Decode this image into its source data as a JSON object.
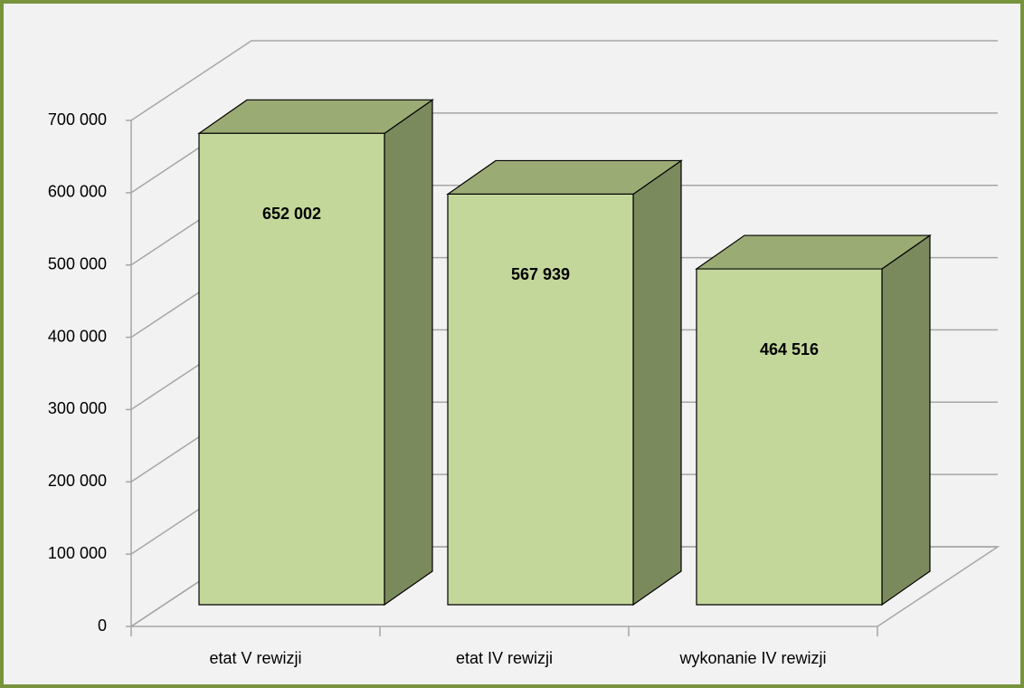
{
  "chart_data": {
    "type": "bar3d",
    "categories": [
      "etat V rewizji",
      "etat IV rewizji",
      "wykonanie IV rewizji"
    ],
    "values": [
      652002,
      567939,
      464516
    ],
    "value_labels": [
      "652 002",
      "567 939",
      "464 516"
    ],
    "color": "#c4d79b",
    "ylim": [
      0,
      700000
    ],
    "yticks": [
      0,
      {
        "value": 100000,
        "label": "100 000"
      },
      {
        "value": 200000,
        "label": "200 000"
      },
      {
        "value": 300000,
        "label": "300 000"
      },
      {
        "value": 400000,
        "label": "400 000"
      },
      {
        "value": 500000,
        "label": "500 000"
      },
      {
        "value": 600000,
        "label": "600 000"
      },
      {
        "value": 700000,
        "label": "700 000"
      }
    ],
    "grid": true
  }
}
